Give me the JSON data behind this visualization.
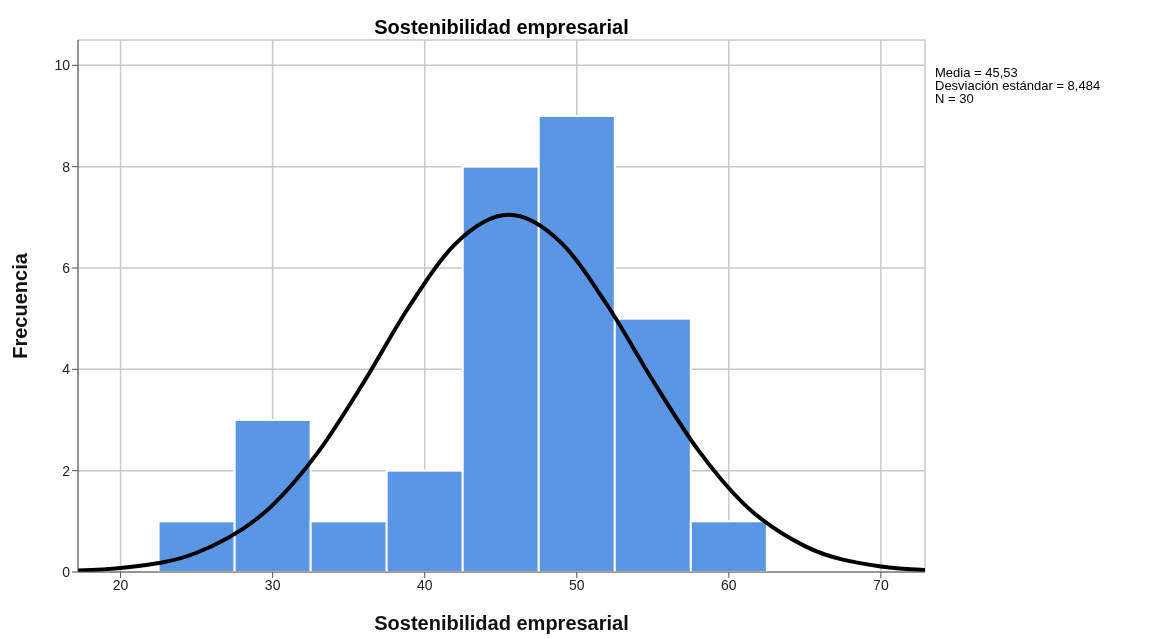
{
  "chart_data": {
    "type": "histogram",
    "title": "Sostenibilidad empresarial",
    "xlabel": "Sostenibilidad empresarial",
    "ylabel": "Frecuencia",
    "bins": [
      22.5,
      27.5,
      32.5,
      37.5,
      42.5,
      47.5,
      52.5,
      57.5,
      62.5
    ],
    "values": [
      1,
      3,
      1,
      2,
      8,
      9,
      5,
      1
    ],
    "color": "#5b96e5",
    "series": [
      {
        "type": "line",
        "color": "#000000",
        "x": [
          17.2,
          20,
          25,
          30,
          33,
          36,
          39,
          42,
          45.53,
          49,
          52,
          55,
          58,
          61,
          65,
          70,
          72.9
        ],
        "values": [
          0.03,
          0.08,
          0.38,
          1.32,
          2.37,
          3.75,
          5.25,
          6.47,
          7.05,
          6.49,
          5.27,
          3.78,
          2.4,
          1.34,
          0.51,
          0.11,
          0.04
        ]
      }
    ],
    "xlim": [
      17.2,
      72.9
    ],
    "xticks": [
      20,
      30,
      40,
      50,
      60,
      70
    ],
    "ylim": [
      0,
      10.5
    ],
    "yticks": [
      0,
      2,
      4,
      6,
      8,
      10
    ],
    "grid": true,
    "legend": false,
    "annotations": [
      "Media = 45,53",
      "Desviación estándar = 8,484",
      "N = 30"
    ]
  }
}
